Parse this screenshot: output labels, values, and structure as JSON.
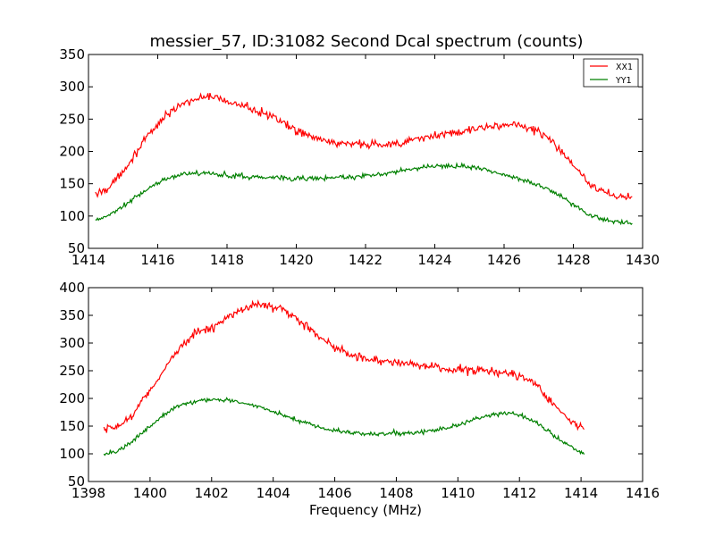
{
  "chart_data": [
    {
      "type": "line",
      "title": "messier_57, ID:31082 Second Dcal spectrum (counts)",
      "xlabel": "",
      "ylabel": "",
      "xlim": [
        1414,
        1430
      ],
      "ylim": [
        50,
        350
      ],
      "xticks": [
        1414,
        1416,
        1418,
        1420,
        1422,
        1424,
        1426,
        1428,
        1430
      ],
      "yticks": [
        50,
        100,
        150,
        200,
        250,
        300,
        350
      ],
      "grid": false,
      "legend": "top-right",
      "series": [
        {
          "name": "XX1",
          "color": "#ff0000",
          "noise": 7,
          "x": [
            1414.2,
            1414.6,
            1415.0,
            1415.4,
            1415.8,
            1416.2,
            1416.6,
            1417.0,
            1417.5,
            1418.0,
            1418.5,
            1419.0,
            1419.5,
            1420.0,
            1420.5,
            1421.0,
            1421.5,
            1422.0,
            1422.5,
            1423.0,
            1423.5,
            1424.0,
            1424.5,
            1425.0,
            1425.5,
            1426.0,
            1426.5,
            1427.0,
            1427.5,
            1428.0,
            1428.5,
            1429.0,
            1429.7
          ],
          "y": [
            133,
            145,
            170,
            200,
            228,
            255,
            270,
            280,
            285,
            278,
            270,
            262,
            247,
            232,
            222,
            215,
            211,
            210,
            211,
            213,
            218,
            224,
            228,
            233,
            238,
            242,
            240,
            230,
            210,
            180,
            150,
            133,
            128
          ]
        },
        {
          "name": "YY1",
          "color": "#008000",
          "noise": 4,
          "x": [
            1414.2,
            1414.6,
            1415.0,
            1415.4,
            1415.8,
            1416.2,
            1416.6,
            1417.0,
            1417.5,
            1418.0,
            1418.5,
            1419.0,
            1419.5,
            1420.0,
            1420.5,
            1421.0,
            1421.5,
            1422.0,
            1422.5,
            1423.0,
            1423.5,
            1424.0,
            1424.5,
            1425.0,
            1425.5,
            1426.0,
            1426.5,
            1427.0,
            1427.5,
            1428.0,
            1428.5,
            1429.0,
            1429.7
          ],
          "y": [
            92,
            102,
            115,
            130,
            145,
            157,
            163,
            166,
            166,
            163,
            161,
            160,
            159,
            158,
            158,
            159,
            160,
            162,
            165,
            170,
            174,
            177,
            178,
            176,
            171,
            164,
            157,
            148,
            136,
            118,
            102,
            92,
            89
          ]
        }
      ]
    },
    {
      "type": "line",
      "title": "",
      "xlabel": "Frequency (MHz)",
      "ylabel": "",
      "xlim": [
        1398,
        1416
      ],
      "ylim": [
        50,
        400
      ],
      "xticks": [
        1398,
        1400,
        1402,
        1404,
        1406,
        1408,
        1410,
        1412,
        1414,
        1416
      ],
      "yticks": [
        50,
        100,
        150,
        200,
        250,
        300,
        350,
        400
      ],
      "grid": false,
      "legend": "none",
      "series": [
        {
          "name": "XX1",
          "color": "#ff0000",
          "noise": 8,
          "x": [
            1398.5,
            1399.0,
            1399.5,
            1400.0,
            1400.5,
            1401.0,
            1401.5,
            1402.0,
            1402.5,
            1403.0,
            1403.5,
            1404.0,
            1404.5,
            1405.0,
            1405.5,
            1406.0,
            1406.5,
            1407.0,
            1407.5,
            1408.0,
            1408.5,
            1409.0,
            1409.5,
            1410.0,
            1410.5,
            1411.0,
            1411.5,
            1412.0,
            1412.5,
            1413.0,
            1413.5,
            1414.1
          ],
          "y": [
            142,
            150,
            175,
            215,
            255,
            295,
            318,
            330,
            345,
            360,
            370,
            368,
            355,
            335,
            310,
            292,
            280,
            272,
            267,
            265,
            262,
            258,
            255,
            252,
            250,
            248,
            246,
            240,
            228,
            195,
            165,
            145
          ]
        },
        {
          "name": "YY1",
          "color": "#008000",
          "noise": 4,
          "x": [
            1398.5,
            1399.0,
            1399.5,
            1400.0,
            1400.5,
            1401.0,
            1401.5,
            1402.0,
            1402.5,
            1403.0,
            1403.5,
            1404.0,
            1404.5,
            1405.0,
            1405.5,
            1406.0,
            1406.5,
            1407.0,
            1407.5,
            1408.0,
            1408.5,
            1409.0,
            1409.5,
            1410.0,
            1410.5,
            1411.0,
            1411.5,
            1412.0,
            1412.5,
            1413.0,
            1413.5,
            1414.1
          ],
          "y": [
            100,
            105,
            125,
            150,
            173,
            188,
            195,
            198,
            197,
            192,
            185,
            176,
            166,
            157,
            148,
            142,
            138,
            136,
            136,
            137,
            138,
            140,
            145,
            152,
            162,
            170,
            175,
            170,
            158,
            138,
            118,
            100
          ]
        }
      ]
    }
  ]
}
